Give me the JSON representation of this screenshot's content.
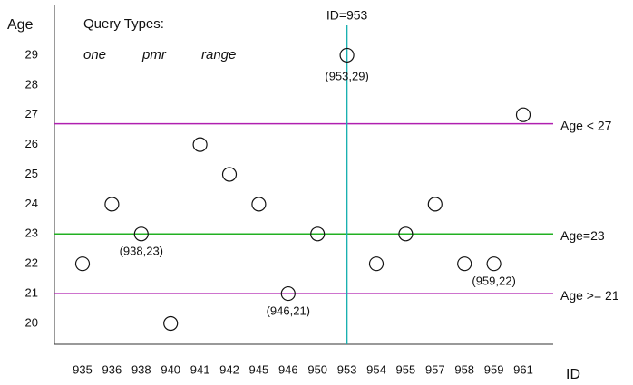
{
  "chart_data": {
    "type": "scatter",
    "y_label": "Age",
    "x_label": "ID",
    "categories": [
      "935",
      "936",
      "938",
      "940",
      "941",
      "942",
      "945",
      "946",
      "950",
      "953",
      "954",
      "955",
      "957",
      "958",
      "959",
      "961"
    ],
    "values": [
      22,
      24,
      23,
      20,
      26,
      25,
      24,
      21,
      23,
      29,
      22,
      23,
      24,
      22,
      22,
      27
    ],
    "ylim": [
      19.3,
      30.7
    ],
    "yticks": [
      20,
      21,
      22,
      23,
      24,
      25,
      26,
      27,
      28,
      29
    ],
    "legend": {
      "title": "Query Types:",
      "items": [
        {
          "name": "one",
          "color": "#1ab0b0"
        },
        {
          "name": "pmr",
          "color": "#22b022"
        },
        {
          "name": "range",
          "color": "#b020b0"
        }
      ]
    },
    "h_lines": [
      {
        "label": "Age < 27",
        "value": 26.7,
        "color": "#b020b0"
      },
      {
        "label": "Age=23",
        "value": 23,
        "color": "#22b022"
      },
      {
        "label": "Age >= 21",
        "value": 21,
        "color": "#b020b0"
      }
    ],
    "v_lines": [
      {
        "label": "ID=953",
        "x": "953",
        "color": "#1ab0b0"
      }
    ],
    "annotations": [
      {
        "text": "(953,29)",
        "x": "953",
        "y": 29,
        "position": "above"
      },
      {
        "text": "(938,23)",
        "x": "938",
        "y": 23,
        "position": "below"
      },
      {
        "text": "(946,21)",
        "x": "946",
        "y": 21,
        "position": "below"
      },
      {
        "text": "(959,22)",
        "x": "959",
        "y": 22,
        "position": "below"
      }
    ]
  }
}
